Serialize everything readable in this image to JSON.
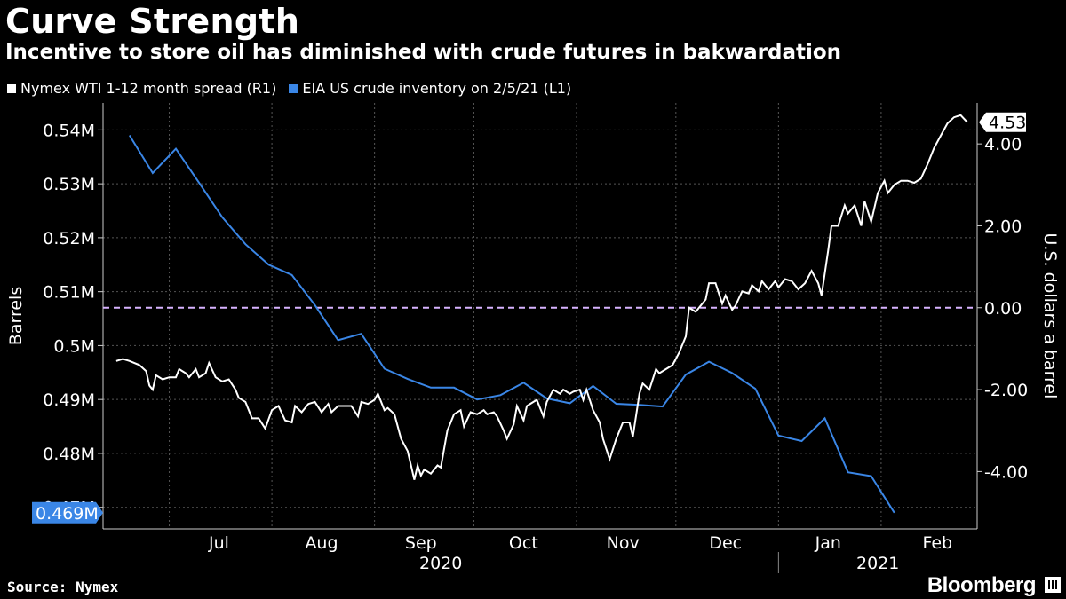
{
  "title": "Curve Strength",
  "subtitle": "Incentive to store oil has diminished with crude futures in bakwardation",
  "source": "Source: Nymex",
  "brand": "Bloomberg",
  "colors": {
    "white_series": "#ffffff",
    "blue_series": "#3a86e6",
    "zero_line": "#d7b3ff",
    "grid": "#555555",
    "background": "#000000"
  },
  "chart_data": {
    "type": "line",
    "title": "Curve Strength",
    "subtitle": "Incentive to store oil has diminished with crude futures in bakwardation",
    "x_months": [
      "Jul",
      "Aug",
      "Sep",
      "Oct",
      "Nov",
      "Dec",
      "Jan",
      "Feb"
    ],
    "x_years": [
      "2020",
      "2021"
    ],
    "left_axis": {
      "label": "Barrels",
      "range": [
        466000,
        545000
      ],
      "ticks": [
        470000,
        480000,
        490000,
        500000,
        510000,
        520000,
        530000,
        540000
      ],
      "tick_labels": [
        "0.47M",
        "0.48M",
        "0.49M",
        "0.5M",
        "0.51M",
        "0.52M",
        "0.53M",
        "0.54M"
      ]
    },
    "right_axis": {
      "label": "U.S. dollars a barrel",
      "range": [
        -5.4,
        5.0
      ],
      "ticks": [
        -4,
        -2,
        0,
        2,
        4
      ],
      "tick_labels": [
        "-4.00",
        "-2.00",
        "0.00",
        "2.00",
        "4.00"
      ]
    },
    "last_value_labels": {
      "spread": "4.53",
      "inventory": "0.469M"
    },
    "series": [
      {
        "name": "Nymex WTI 1-12 month spread (R1)",
        "axis": "right",
        "color": "#ffffff",
        "points": [
          [
            "2020-06-15",
            -1.3
          ],
          [
            "2020-06-17",
            -1.25
          ],
          [
            "2020-06-19",
            -1.3
          ],
          [
            "2020-06-22",
            -1.4
          ],
          [
            "2020-06-24",
            -1.55
          ],
          [
            "2020-06-25",
            -1.9
          ],
          [
            "2020-06-26",
            -2.0
          ],
          [
            "2020-06-27",
            -1.65
          ],
          [
            "2020-06-29",
            -1.75
          ],
          [
            "2020-07-01",
            -1.7
          ],
          [
            "2020-07-03",
            -1.7
          ],
          [
            "2020-07-04",
            -1.5
          ],
          [
            "2020-07-06",
            -1.6
          ],
          [
            "2020-07-07",
            -1.7
          ],
          [
            "2020-07-09",
            -1.5
          ],
          [
            "2020-07-10",
            -1.7
          ],
          [
            "2020-07-12",
            -1.6
          ],
          [
            "2020-07-13",
            -1.35
          ],
          [
            "2020-07-15",
            -1.7
          ],
          [
            "2020-07-17",
            -1.8
          ],
          [
            "2020-07-19",
            -1.75
          ],
          [
            "2020-07-21",
            -2.0
          ],
          [
            "2020-07-22",
            -2.2
          ],
          [
            "2020-07-24",
            -2.3
          ],
          [
            "2020-07-26",
            -2.7
          ],
          [
            "2020-07-28",
            -2.7
          ],
          [
            "2020-07-30",
            -2.95
          ],
          [
            "2020-08-01",
            -2.5
          ],
          [
            "2020-08-03",
            -2.4
          ],
          [
            "2020-08-05",
            -2.75
          ],
          [
            "2020-08-07",
            -2.8
          ],
          [
            "2020-08-08",
            -2.4
          ],
          [
            "2020-08-10",
            -2.55
          ],
          [
            "2020-08-12",
            -2.35
          ],
          [
            "2020-08-14",
            -2.3
          ],
          [
            "2020-08-16",
            -2.55
          ],
          [
            "2020-08-18",
            -2.35
          ],
          [
            "2020-08-19",
            -2.55
          ],
          [
            "2020-08-21",
            -2.4
          ],
          [
            "2020-08-23",
            -2.4
          ],
          [
            "2020-08-25",
            -2.4
          ],
          [
            "2020-08-27",
            -2.65
          ],
          [
            "2020-08-28",
            -2.3
          ],
          [
            "2020-08-30",
            -2.35
          ],
          [
            "2020-09-01",
            -2.25
          ],
          [
            "2020-09-02",
            -2.1
          ],
          [
            "2020-09-04",
            -2.5
          ],
          [
            "2020-09-05",
            -2.45
          ],
          [
            "2020-09-07",
            -2.6
          ],
          [
            "2020-09-09",
            -3.2
          ],
          [
            "2020-09-11",
            -3.5
          ],
          [
            "2020-09-13",
            -4.2
          ],
          [
            "2020-09-14",
            -3.85
          ],
          [
            "2020-09-15",
            -4.1
          ],
          [
            "2020-09-16",
            -3.95
          ],
          [
            "2020-09-18",
            -4.05
          ],
          [
            "2020-09-20",
            -3.85
          ],
          [
            "2020-09-21",
            -3.9
          ],
          [
            "2020-09-23",
            -3.0
          ],
          [
            "2020-09-25",
            -2.6
          ],
          [
            "2020-09-27",
            -2.5
          ],
          [
            "2020-09-28",
            -2.9
          ],
          [
            "2020-09-30",
            -2.55
          ],
          [
            "2020-10-02",
            -2.6
          ],
          [
            "2020-10-04",
            -2.5
          ],
          [
            "2020-10-05",
            -2.6
          ],
          [
            "2020-10-07",
            -2.55
          ],
          [
            "2020-10-08",
            -2.65
          ],
          [
            "2020-10-10",
            -3.0
          ],
          [
            "2020-10-11",
            -3.2
          ],
          [
            "2020-10-13",
            -2.85
          ],
          [
            "2020-10-14",
            -2.4
          ],
          [
            "2020-10-16",
            -2.75
          ],
          [
            "2020-10-17",
            -2.4
          ],
          [
            "2020-10-19",
            -2.3
          ],
          [
            "2020-10-20",
            -2.25
          ],
          [
            "2020-10-22",
            -2.65
          ],
          [
            "2020-10-23",
            -2.3
          ],
          [
            "2020-10-25",
            -2.0
          ],
          [
            "2020-10-27",
            -2.1
          ],
          [
            "2020-10-28",
            -2.0
          ],
          [
            "2020-10-30",
            -2.1
          ],
          [
            "2020-10-31",
            -2.05
          ],
          [
            "2020-11-02",
            -2.0
          ],
          [
            "2020-11-03",
            -2.25
          ],
          [
            "2020-11-04",
            -2.0
          ],
          [
            "2020-11-06",
            -2.5
          ],
          [
            "2020-11-08",
            -2.8
          ],
          [
            "2020-11-09",
            -3.2
          ],
          [
            "2020-11-11",
            -3.7
          ],
          [
            "2020-11-13",
            -3.2
          ],
          [
            "2020-11-15",
            -2.8
          ],
          [
            "2020-11-17",
            -2.8
          ],
          [
            "2020-11-18",
            -3.15
          ],
          [
            "2020-11-20",
            -2.1
          ],
          [
            "2020-11-21",
            -1.85
          ],
          [
            "2020-11-23",
            -2.0
          ],
          [
            "2020-11-25",
            -1.5
          ],
          [
            "2020-11-26",
            -1.6
          ],
          [
            "2020-11-28",
            -1.5
          ],
          [
            "2020-11-30",
            -1.4
          ],
          [
            "2020-12-02",
            -1.1
          ],
          [
            "2020-12-04",
            -0.7
          ],
          [
            "2020-12-05",
            0.0
          ],
          [
            "2020-12-07",
            -0.1
          ],
          [
            "2020-12-08",
            0.0
          ],
          [
            "2020-12-10",
            0.2
          ],
          [
            "2020-12-11",
            0.6
          ],
          [
            "2020-12-13",
            0.6
          ],
          [
            "2020-12-15",
            0.1
          ],
          [
            "2020-12-16",
            0.3
          ],
          [
            "2020-12-18",
            -0.05
          ],
          [
            "2020-12-19",
            0.05
          ],
          [
            "2020-12-21",
            0.4
          ],
          [
            "2020-12-23",
            0.35
          ],
          [
            "2020-12-24",
            0.55
          ],
          [
            "2020-12-26",
            0.4
          ],
          [
            "2020-12-27",
            0.65
          ],
          [
            "2020-12-29",
            0.45
          ],
          [
            "2020-12-31",
            0.65
          ],
          [
            "2021-01-01",
            0.5
          ],
          [
            "2021-01-03",
            0.7
          ],
          [
            "2021-01-05",
            0.65
          ],
          [
            "2021-01-07",
            0.45
          ],
          [
            "2021-01-09",
            0.6
          ],
          [
            "2021-01-11",
            0.9
          ],
          [
            "2021-01-13",
            0.6
          ],
          [
            "2021-01-14",
            0.3
          ],
          [
            "2021-01-16",
            1.4
          ],
          [
            "2021-01-17",
            2.0
          ],
          [
            "2021-01-19",
            2.0
          ],
          [
            "2021-01-21",
            2.5
          ],
          [
            "2021-01-22",
            2.3
          ],
          [
            "2021-01-24",
            2.5
          ],
          [
            "2021-01-26",
            2.0
          ],
          [
            "2021-01-27",
            2.6
          ],
          [
            "2021-01-29",
            2.1
          ],
          [
            "2021-01-31",
            2.8
          ],
          [
            "2021-02-02",
            3.1
          ],
          [
            "2021-02-03",
            2.8
          ],
          [
            "2021-02-05",
            3.0
          ],
          [
            "2021-02-07",
            3.1
          ],
          [
            "2021-02-09",
            3.1
          ],
          [
            "2021-02-11",
            3.05
          ],
          [
            "2021-02-13",
            3.15
          ],
          [
            "2021-02-15",
            3.5
          ],
          [
            "2021-02-17",
            3.9
          ],
          [
            "2021-02-19",
            4.2
          ],
          [
            "2021-02-21",
            4.5
          ],
          [
            "2021-02-23",
            4.65
          ],
          [
            "2021-02-25",
            4.7
          ],
          [
            "2021-02-27",
            4.53
          ]
        ]
      },
      {
        "name": "EIA US crude inventory on 2/5/21 (L1)",
        "axis": "left",
        "color": "#3a86e6",
        "points": [
          [
            "2020-06-19",
            539000
          ],
          [
            "2020-06-26",
            532000
          ],
          [
            "2020-07-03",
            536500
          ],
          [
            "2020-07-10",
            530200
          ],
          [
            "2020-07-17",
            523800
          ],
          [
            "2020-07-24",
            518800
          ],
          [
            "2020-07-31",
            515000
          ],
          [
            "2020-08-07",
            513100
          ],
          [
            "2020-08-14",
            507500
          ],
          [
            "2020-08-21",
            501000
          ],
          [
            "2020-08-28",
            502200
          ],
          [
            "2020-09-04",
            495700
          ],
          [
            "2020-09-11",
            493800
          ],
          [
            "2020-09-18",
            492200
          ],
          [
            "2020-09-25",
            492200
          ],
          [
            "2020-10-02",
            490000
          ],
          [
            "2020-10-09",
            490800
          ],
          [
            "2020-10-16",
            493100
          ],
          [
            "2020-10-23",
            490200
          ],
          [
            "2020-10-30",
            489300
          ],
          [
            "2020-11-06",
            492500
          ],
          [
            "2020-11-13",
            489200
          ],
          [
            "2020-11-20",
            489000
          ],
          [
            "2020-11-27",
            488700
          ],
          [
            "2020-12-04",
            494600
          ],
          [
            "2020-12-11",
            497000
          ],
          [
            "2020-12-18",
            494900
          ],
          [
            "2020-12-25",
            492000
          ],
          [
            "2021-01-01",
            483300
          ],
          [
            "2021-01-08",
            482300
          ],
          [
            "2021-01-15",
            486500
          ],
          [
            "2021-01-22",
            476500
          ],
          [
            "2021-01-29",
            475800
          ],
          [
            "2021-02-05",
            469000
          ]
        ]
      }
    ]
  }
}
